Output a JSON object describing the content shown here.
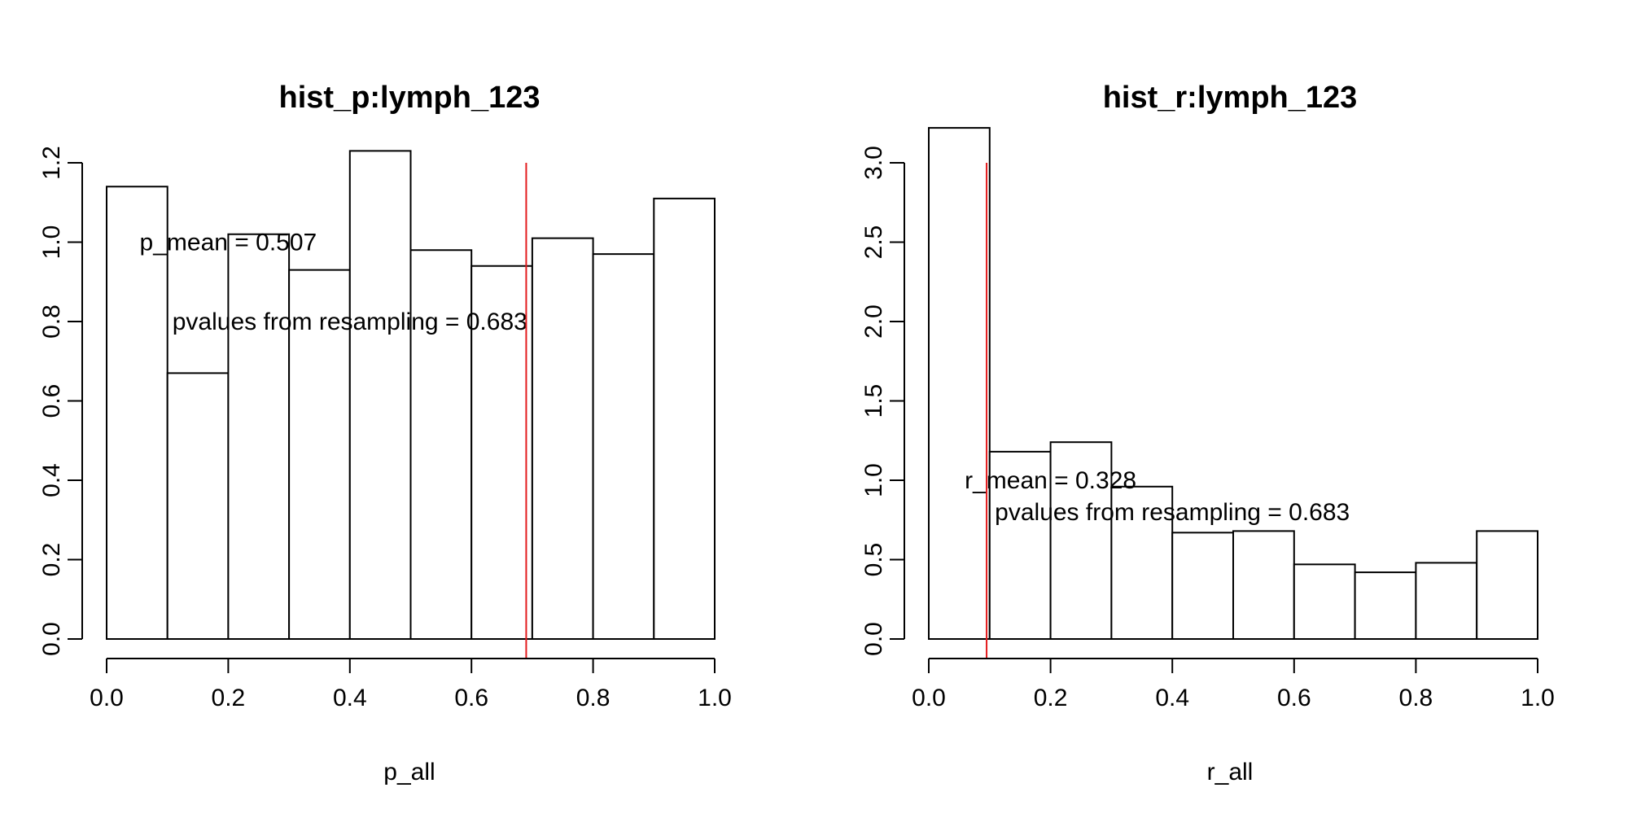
{
  "chart_data": [
    {
      "type": "histogram",
      "title": "hist_p:lymph_123",
      "xlabel": "p_all",
      "ylabel": "",
      "xlim": [
        0,
        1
      ],
      "ylim": [
        0,
        1.2
      ],
      "x_ticks": [
        "0.0",
        "0.2",
        "0.4",
        "0.6",
        "0.8",
        "1.0"
      ],
      "y_ticks": [
        "0.0",
        "0.2",
        "0.4",
        "0.6",
        "0.8",
        "1.0",
        "1.2"
      ],
      "bins": [
        0.0,
        0.1,
        0.2,
        0.3,
        0.4,
        0.5,
        0.6,
        0.7,
        0.8,
        0.9,
        1.0
      ],
      "values": [
        1.14,
        0.67,
        1.02,
        0.93,
        1.23,
        0.98,
        0.94,
        1.01,
        0.97,
        1.11
      ],
      "vline": {
        "x": 0.69,
        "color": "#e31a1c"
      },
      "annotations": [
        {
          "text": "p_mean = 0.507",
          "x": 0.2,
          "y": 1.0
        },
        {
          "text": "pvalues from resampling = 0.683",
          "x": 0.4,
          "y": 0.8
        }
      ],
      "grid": false,
      "legend": "none"
    },
    {
      "type": "histogram",
      "title": "hist_r:lymph_123",
      "xlabel": "r_all",
      "ylabel": "",
      "xlim": [
        0,
        1
      ],
      "ylim": [
        0,
        3.0
      ],
      "x_ticks": [
        "0.0",
        "0.2",
        "0.4",
        "0.6",
        "0.8",
        "1.0"
      ],
      "y_ticks": [
        "0.0",
        "0.5",
        "1.0",
        "1.5",
        "2.0",
        "2.5",
        "3.0"
      ],
      "bins": [
        0.0,
        0.1,
        0.2,
        0.3,
        0.4,
        0.5,
        0.6,
        0.7,
        0.8,
        0.9,
        1.0
      ],
      "values": [
        3.22,
        1.18,
        1.24,
        0.96,
        0.67,
        0.68,
        0.47,
        0.42,
        0.48,
        0.68
      ],
      "vline": {
        "x": 0.095,
        "color": "#e31a1c"
      },
      "annotations": [
        {
          "text": "r_mean = 0.328",
          "x": 0.2,
          "y": 1.0
        },
        {
          "text": "pvalues from resampling = 0.683",
          "x": 0.4,
          "y": 0.8
        }
      ],
      "grid": false,
      "legend": "none"
    }
  ]
}
